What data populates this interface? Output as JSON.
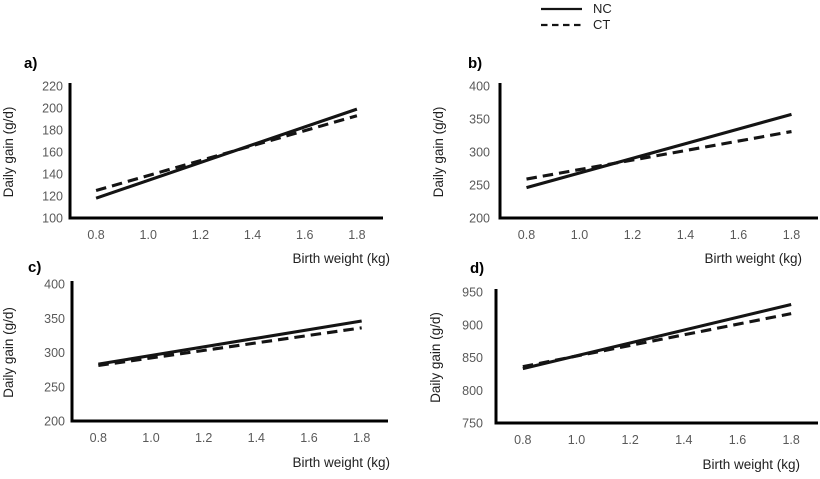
{
  "figure": {
    "background": "#ffffff"
  },
  "colors": {
    "series_line": "#141414",
    "axis_line": "#000000",
    "tick_label": "#595959",
    "axis_title": "#1f1f1f",
    "panel_label": "#000000"
  },
  "legend": {
    "position": "top-center",
    "entries": [
      {
        "label": "NC",
        "style": "solid"
      },
      {
        "label": "CT",
        "style": "dashed"
      }
    ]
  },
  "chart_data": [
    {
      "panel": "a)",
      "type": "line",
      "xlabel": "Birth weight (kg)",
      "ylabel": "Daily gain (g/d)",
      "x": [
        0.8,
        1.8
      ],
      "xticks": [
        0.8,
        1.0,
        1.2,
        1.4,
        1.6,
        1.8
      ],
      "xlim": [
        0.7,
        1.9
      ],
      "ylim": [
        100,
        220
      ],
      "yticks": [
        100,
        120,
        140,
        160,
        180,
        200,
        220
      ],
      "grid": false,
      "series": [
        {
          "name": "NC",
          "style": "solid",
          "values": [
            118,
            199
          ]
        },
        {
          "name": "CT",
          "style": "dashed",
          "values": [
            125,
            193
          ]
        }
      ]
    },
    {
      "panel": "b)",
      "type": "line",
      "xlabel": "Birth weight (kg)",
      "ylabel": "Daily gain (g/d)",
      "x": [
        0.8,
        1.8
      ],
      "xticks": [
        0.8,
        1.0,
        1.2,
        1.4,
        1.6,
        1.8
      ],
      "xlim": [
        0.7,
        1.9
      ],
      "ylim": [
        200,
        400
      ],
      "yticks": [
        200,
        250,
        300,
        350,
        400
      ],
      "grid": false,
      "series": [
        {
          "name": "NC",
          "style": "solid",
          "values": [
            246,
            357
          ]
        },
        {
          "name": "CT",
          "style": "dashed",
          "values": [
            259,
            331
          ]
        }
      ]
    },
    {
      "panel": "c)",
      "type": "line",
      "xlabel": "Birth weight (kg)",
      "ylabel": "Daily gain (g/d)",
      "x": [
        0.8,
        1.8
      ],
      "xticks": [
        0.8,
        1.0,
        1.2,
        1.4,
        1.6,
        1.8
      ],
      "xlim": [
        0.7,
        1.9
      ],
      "ylim": [
        200,
        400
      ],
      "yticks": [
        200,
        250,
        300,
        350,
        400
      ],
      "grid": false,
      "series": [
        {
          "name": "NC",
          "style": "solid",
          "values": [
            283,
            346
          ]
        },
        {
          "name": "CT",
          "style": "dashed",
          "values": [
            281,
            336
          ]
        }
      ]
    },
    {
      "panel": "d)",
      "type": "line",
      "xlabel": "Birth weight (kg)",
      "ylabel": "Daily gain (g/d)",
      "x": [
        0.8,
        1.8
      ],
      "xticks": [
        0.8,
        1.0,
        1.2,
        1.4,
        1.6,
        1.8
      ],
      "xlim": [
        0.7,
        1.9
      ],
      "ylim": [
        750,
        950
      ],
      "yticks": [
        750,
        800,
        850,
        900,
        950
      ],
      "grid": false,
      "series": [
        {
          "name": "NC",
          "style": "solid",
          "values": [
            833,
            931
          ]
        },
        {
          "name": "CT",
          "style": "dashed",
          "values": [
            836,
            917
          ]
        }
      ]
    }
  ]
}
